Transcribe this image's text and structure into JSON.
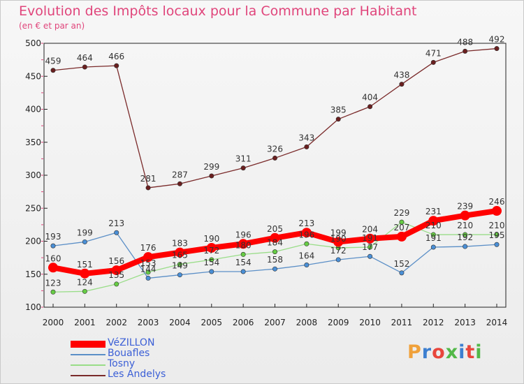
{
  "header": {
    "title": "Evolution des Impôts locaux pour la Commune par Habitant",
    "subtitle": "(en € et par an)"
  },
  "brand": {
    "text": "Proxiti",
    "colors": [
      "#f0a13a",
      "#3d7fd0",
      "#e8463c",
      "#52b848",
      "#3d7fd0",
      "#e8463c",
      "#52b848"
    ]
  },
  "chart_data": {
    "type": "line",
    "title": "Evolution des Impôts locaux pour la Commune par Habitant",
    "subtitle": "(en € et par an)",
    "x": [
      "2000",
      "2001",
      "2002",
      "2003",
      "2004",
      "2005",
      "2006",
      "2007",
      "2008",
      "2009",
      "2010",
      "2011",
      "2012",
      "2013",
      "2014"
    ],
    "y_ticks": [
      "100",
      "150",
      "200",
      "250",
      "300",
      "350",
      "400",
      "450",
      "500"
    ],
    "ylim": [
      100,
      500
    ],
    "grid": false,
    "legend_position": "bottom-left",
    "series": [
      {
        "name": "VéZILLON",
        "color": "#ff0000",
        "marker_color": "#ff0000",
        "emphasis": true,
        "values": [
          160,
          151,
          156,
          176,
          183,
          190,
          196,
          205,
          213,
          199,
          204,
          207,
          231,
          239,
          246
        ],
        "labels": [
          "160",
          "151",
          "156",
          "176",
          "183",
          "190",
          "196",
          "205",
          "213",
          "199",
          "204",
          "207",
          "231",
          "239",
          "246"
        ]
      },
      {
        "name": "Bouafles",
        "color": "#5b8fc7",
        "marker_color": "#4a8fd6",
        "emphasis": false,
        "values": [
          193,
          199,
          213,
          144,
          149,
          154,
          154,
          158,
          164,
          172,
          177,
          152,
          191,
          192,
          195
        ],
        "labels": [
          "193",
          "199",
          "213",
          "144",
          "149",
          "154",
          "154",
          "158",
          "164",
          "172",
          "177",
          "152",
          "191",
          "192",
          "195"
        ]
      },
      {
        "name": "Tosny",
        "color": "#99dd88",
        "marker_color": "#66cc44",
        "emphasis": false,
        "values": [
          123,
          124,
          135,
          153,
          165,
          172,
          180,
          184,
          196,
          190,
          191,
          229,
          210,
          210,
          210
        ],
        "labels": [
          "123",
          "124",
          "135",
          "153",
          "165",
          "172",
          "180",
          "184",
          "196",
          "190",
          "191",
          "229",
          "210",
          "210",
          "210"
        ]
      },
      {
        "name": "Les Andelys",
        "color": "#7a2a2a",
        "marker_color": "#6a1f1f",
        "emphasis": false,
        "values": [
          459,
          464,
          466,
          281,
          287,
          299,
          311,
          326,
          343,
          385,
          404,
          438,
          471,
          488,
          492
        ],
        "labels": [
          "459",
          "464",
          "466",
          "281",
          "287",
          "299",
          "311",
          "326",
          "343",
          "385",
          "404",
          "438",
          "471",
          "488",
          "492"
        ]
      }
    ]
  }
}
